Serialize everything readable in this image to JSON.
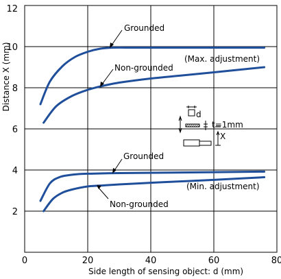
{
  "chart_data": {
    "type": "line",
    "xlabel": "Side length of sensing object: d (mm)",
    "ylabel": "Distance X (mm)",
    "xlim": [
      0,
      80
    ],
    "ylim": [
      0,
      12
    ],
    "xticks": [
      "0",
      "20",
      "40",
      "60",
      "80"
    ],
    "yticks": [
      "2",
      "4",
      "6",
      "8",
      "10",
      "12"
    ],
    "grid": true,
    "series": [
      {
        "name": "Grounded",
        "group": "Max. adjustment",
        "x": [
          5,
          8,
          12,
          16,
          20,
          24,
          28,
          35,
          45,
          60,
          76
        ],
        "y": [
          7.2,
          8.3,
          9.05,
          9.5,
          9.75,
          9.9,
          9.95,
          9.95,
          9.95,
          9.95,
          9.95
        ]
      },
      {
        "name": "Non-grounded",
        "group": "Max. adjustment",
        "x": [
          6,
          10,
          15,
          20,
          25,
          30,
          40,
          50,
          60,
          76
        ],
        "y": [
          6.3,
          7.1,
          7.6,
          7.9,
          8.1,
          8.25,
          8.45,
          8.6,
          8.75,
          9.0
        ]
      },
      {
        "name": "Grounded",
        "group": "Min. adjustment",
        "x": [
          5,
          8,
          11,
          14,
          17,
          20,
          30,
          50,
          76
        ],
        "y": [
          2.5,
          3.35,
          3.65,
          3.75,
          3.8,
          3.82,
          3.85,
          3.88,
          3.92
        ]
      },
      {
        "name": "Non-grounded",
        "group": "Min. adjustment",
        "x": [
          6,
          9,
          12,
          15,
          20,
          25,
          30,
          40,
          50,
          60,
          76
        ],
        "y": [
          2.0,
          2.6,
          2.9,
          3.05,
          3.2,
          3.25,
          3.3,
          3.38,
          3.45,
          3.52,
          3.65
        ]
      }
    ],
    "annotations": {
      "max_grounded": "Grounded",
      "max_non_grounded": "Non-grounded",
      "max_adjustment": "(Max. adjustment)",
      "min_grounded": "Grounded",
      "min_non_grounded": "Non-grounded",
      "min_adjustment": "(Min. adjustment)",
      "inset_d": "d",
      "inset_t": "t=1mm",
      "inset_x": "X"
    },
    "colors": {
      "line": "#1f4e9a",
      "grid": "#000000"
    }
  }
}
